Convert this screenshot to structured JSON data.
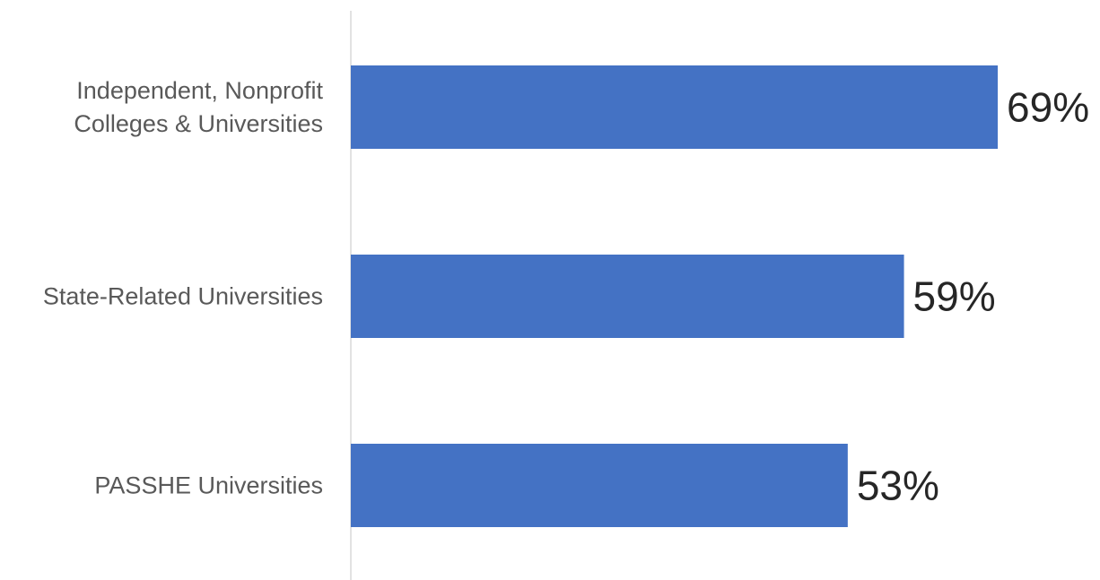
{
  "chart_data": {
    "type": "bar",
    "orientation": "horizontal",
    "categories": [
      [
        "Independent, Nonprofit",
        "Colleges & Universities"
      ],
      [
        "State-Related Universities"
      ],
      [
        "PASSHE Universities"
      ]
    ],
    "values": [
      69,
      59,
      53
    ],
    "value_labels": [
      "69%",
      "59%",
      "53%"
    ],
    "title": "",
    "xlabel": "",
    "ylabel": "",
    "xlim": [
      0,
      100
    ],
    "grid": false,
    "legend": "none",
    "bar_color": "#4472C4",
    "axis_color": "#D9D9D9"
  }
}
